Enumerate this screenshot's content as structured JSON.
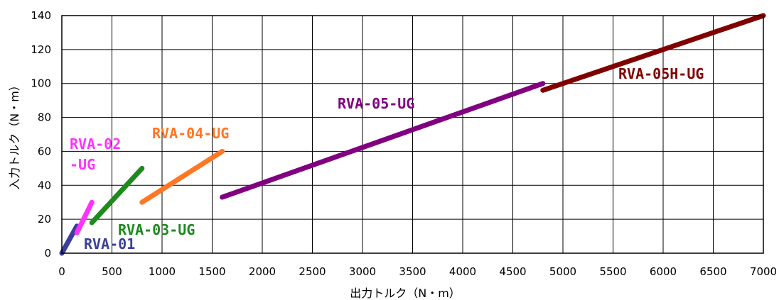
{
  "chart_data": {
    "type": "line",
    "title": "",
    "xlabel": "出力トルク（N・m）",
    "ylabel": "入力トルク（N・m）",
    "xlim": [
      0,
      7000
    ],
    "ylim": [
      0,
      140
    ],
    "xticks": [
      0,
      500,
      1000,
      1500,
      2000,
      2500,
      3000,
      3500,
      4000,
      4500,
      5000,
      5500,
      6000,
      6500,
      7000
    ],
    "yticks": [
      0,
      20,
      40,
      60,
      80,
      100,
      120,
      140
    ],
    "grid": true,
    "legend": "none",
    "series": [
      {
        "name": "RVA-01",
        "color": "#3b3f99",
        "points": [
          [
            0,
            0
          ],
          [
            150,
            16
          ]
        ]
      },
      {
        "name": "RVA-02 -UG",
        "color": "#ff33ff",
        "points": [
          [
            150,
            12
          ],
          [
            300,
            30
          ]
        ]
      },
      {
        "name": "RVA-03-UG",
        "color": "#1e8a1e",
        "points": [
          [
            300,
            18
          ],
          [
            800,
            50
          ]
        ]
      },
      {
        "name": "RVA-04-UG",
        "color": "#ff7722",
        "points": [
          [
            800,
            30
          ],
          [
            1600,
            60
          ]
        ]
      },
      {
        "name": "RVA-05-UG",
        "color": "#800080",
        "points": [
          [
            1600,
            33
          ],
          [
            4800,
            100
          ]
        ]
      },
      {
        "name": "RVA-05H-UG",
        "color": "#800000",
        "points": [
          [
            4800,
            96
          ],
          [
            7000,
            140
          ]
        ]
      }
    ],
    "labels": [
      {
        "series": 0,
        "lines": [
          "RVA-01"
        ]
      },
      {
        "series": 1,
        "lines": [
          "RVA-02",
          "-UG"
        ]
      },
      {
        "series": 2,
        "lines": [
          "RVA-03-UG"
        ]
      },
      {
        "series": 3,
        "lines": [
          "RVA-04-UG"
        ]
      },
      {
        "series": 4,
        "lines": [
          "RVA-05-UG"
        ]
      },
      {
        "series": 5,
        "lines": [
          "RVA-05H-UG"
        ]
      }
    ]
  }
}
